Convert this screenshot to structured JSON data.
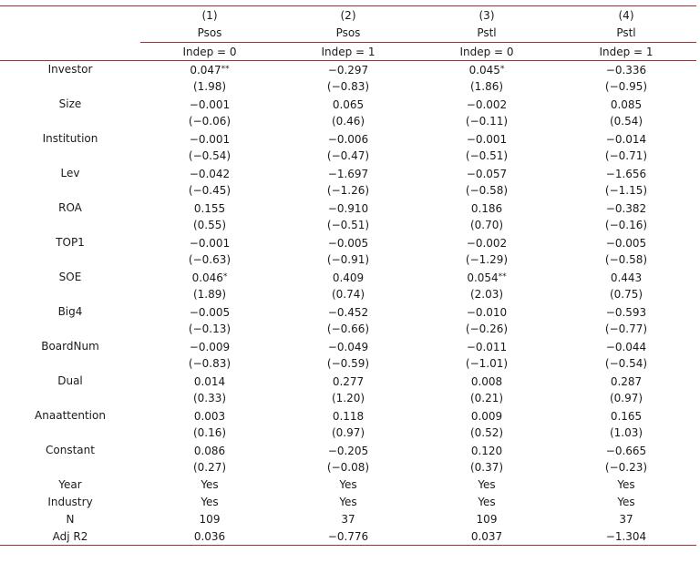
{
  "columns": [
    {
      "num": "(1)",
      "dep": "Psos",
      "sample": "Indep = 0"
    },
    {
      "num": "(2)",
      "dep": "Psos",
      "sample": "Indep = 1"
    },
    {
      "num": "(3)",
      "dep": "Pstl",
      "sample": "Indep = 0"
    },
    {
      "num": "(4)",
      "dep": "Pstl",
      "sample": "Indep = 1"
    }
  ],
  "variables": [
    {
      "label": "Investor",
      "coef": [
        "0.047",
        "−0.297",
        "0.045",
        "−0.336"
      ],
      "stars": [
        "**",
        "",
        "*",
        ""
      ],
      "t": [
        "(1.98)",
        "(−0.83)",
        "(1.86)",
        "(−0.95)"
      ]
    },
    {
      "label": "Size",
      "coef": [
        "−0.001",
        "0.065",
        "−0.002",
        "0.085"
      ],
      "stars": [
        "",
        "",
        "",
        ""
      ],
      "t": [
        "(−0.06)",
        "(0.46)",
        "(−0.11)",
        "(0.54)"
      ]
    },
    {
      "label": "Institution",
      "coef": [
        "−0.001",
        "−0.006",
        "−0.001",
        "−0.014"
      ],
      "stars": [
        "",
        "",
        "",
        ""
      ],
      "t": [
        "(−0.54)",
        "(−0.47)",
        "(−0.51)",
        "(−0.71)"
      ]
    },
    {
      "label": "Lev",
      "coef": [
        "−0.042",
        "−1.697",
        "−0.057",
        "−1.656"
      ],
      "stars": [
        "",
        "",
        "",
        ""
      ],
      "t": [
        "(−0.45)",
        "(−1.26)",
        "(−0.58)",
        "(−1.15)"
      ]
    },
    {
      "label": "ROA",
      "coef": [
        "0.155",
        "−0.910",
        "0.186",
        "−0.382"
      ],
      "stars": [
        "",
        "",
        "",
        ""
      ],
      "t": [
        "(0.55)",
        "(−0.51)",
        "(0.70)",
        "(−0.16)"
      ]
    },
    {
      "label": "TOP1",
      "coef": [
        "−0.001",
        "−0.005",
        "−0.002",
        "−0.005"
      ],
      "stars": [
        "",
        "",
        "",
        ""
      ],
      "t": [
        "(−0.63)",
        "(−0.91)",
        "(−1.29)",
        "(−0.58)"
      ]
    },
    {
      "label": "SOE",
      "coef": [
        "0.046",
        "0.409",
        "0.054",
        "0.443"
      ],
      "stars": [
        "*",
        "",
        "**",
        ""
      ],
      "t": [
        "(1.89)",
        "(0.74)",
        "(2.03)",
        "(0.75)"
      ]
    },
    {
      "label": "Big4",
      "coef": [
        "−0.005",
        "−0.452",
        "−0.010",
        "−0.593"
      ],
      "stars": [
        "",
        "",
        "",
        ""
      ],
      "t": [
        "(−0.13)",
        "(−0.66)",
        "(−0.26)",
        "(−0.77)"
      ]
    },
    {
      "label": "BoardNum",
      "coef": [
        "−0.009",
        "−0.049",
        "−0.011",
        "−0.044"
      ],
      "stars": [
        "",
        "",
        "",
        ""
      ],
      "t": [
        "(−0.83)",
        "(−0.59)",
        "(−1.01)",
        "(−0.54)"
      ]
    },
    {
      "label": "Dual",
      "coef": [
        "0.014",
        "0.277",
        "0.008",
        "0.287"
      ],
      "stars": [
        "",
        "",
        "",
        ""
      ],
      "t": [
        "(0.33)",
        "(1.20)",
        "(0.21)",
        "(0.97)"
      ]
    },
    {
      "label": "Anaattention",
      "coef": [
        "0.003",
        "0.118",
        "0.009",
        "0.165"
      ],
      "stars": [
        "",
        "",
        "",
        ""
      ],
      "t": [
        "(0.16)",
        "(0.97)",
        "(0.52)",
        "(1.03)"
      ]
    },
    {
      "label": "Constant",
      "coef": [
        "0.086",
        "−0.205",
        "0.120",
        "−0.665"
      ],
      "stars": [
        "",
        "",
        "",
        ""
      ],
      "t": [
        "(0.27)",
        "(−0.08)",
        "(0.37)",
        "(−0.23)"
      ]
    }
  ],
  "footer": [
    {
      "label": "Year",
      "values": [
        "Yes",
        "Yes",
        "Yes",
        "Yes"
      ]
    },
    {
      "label": "Industry",
      "values": [
        "Yes",
        "Yes",
        "Yes",
        "Yes"
      ]
    },
    {
      "label": "N",
      "values": [
        "109",
        "37",
        "109",
        "37"
      ]
    },
    {
      "label": "Adj R2",
      "values": [
        "0.036",
        "−0.776",
        "0.037",
        "−1.304"
      ]
    }
  ],
  "colors": {
    "rule": "#a0303a",
    "text": "#1a1a1a"
  }
}
